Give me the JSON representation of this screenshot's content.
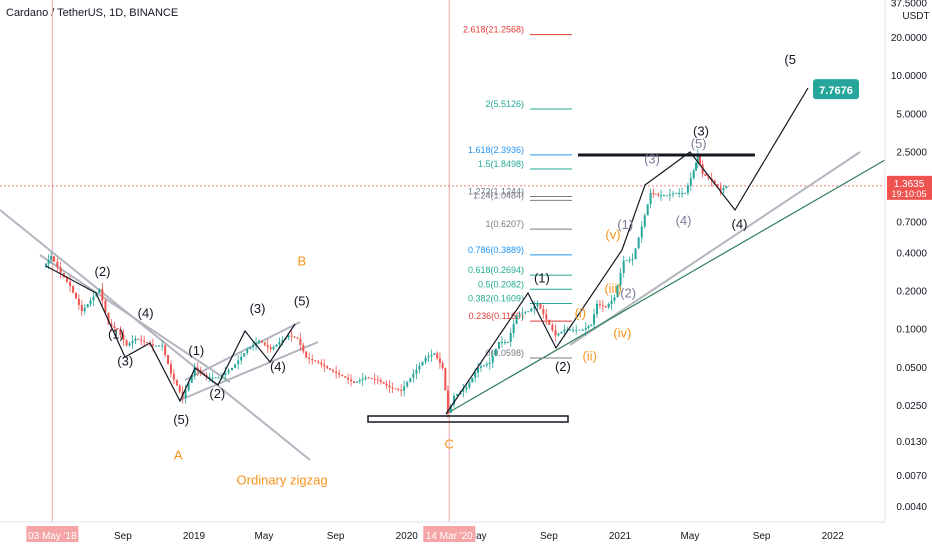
{
  "header": {
    "title": "Cardano / TetherUS, 1D, BINANCE"
  },
  "colors": {
    "candle_up": "#26a69a",
    "candle_down": "#ef5350",
    "wave_black": "#131722",
    "wave_orange": "#f7931a",
    "wave_purple": "#7b7b95",
    "trend_gray": "#b2b5be",
    "trend_green": "#2e7d5b",
    "fib_red": "#e53935",
    "fib_green": "#22ab94",
    "fib_blue": "#2196f3",
    "fib_gray": "#787b86",
    "target_box": "#26a69a",
    "price_box": "#ef5350"
  },
  "chart_data": {
    "type": "line",
    "title": "Cardano / TetherUS, 1D, BINANCE",
    "y_scale": "log",
    "y_unit": "USDT",
    "ylim": [
      0.003,
      37.5
    ],
    "y_ticks": [
      "37.5000",
      "20.0000",
      "10.0000",
      "5.0000",
      "2.5000",
      "0.7000",
      "0.4000",
      "0.2000",
      "0.1000",
      "0.0500",
      "0.0250",
      "0.0130",
      "0.0070",
      "0.0040"
    ],
    "x_ticks": [
      "Sep",
      "2019",
      "May",
      "Sep",
      "2020",
      "May",
      "Sep",
      "2021",
      "May",
      "Sep",
      "2022"
    ],
    "date_markers": [
      "03 May '18",
      "14 Mar '20"
    ],
    "series": [
      {
        "values": [
          [
            "2018-04-20",
            0.31
          ],
          [
            "2018-05-03",
            0.38
          ],
          [
            "2018-05-20",
            0.28
          ],
          [
            "2018-06-05",
            0.22
          ],
          [
            "2018-06-25",
            0.14
          ],
          [
            "2018-07-10",
            0.17
          ],
          [
            "2018-07-25",
            0.21
          ],
          [
            "2018-08-10",
            0.11
          ],
          [
            "2018-08-25",
            0.1
          ],
          [
            "2018-09-10",
            0.075
          ],
          [
            "2018-09-25",
            0.085
          ],
          [
            "2018-10-10",
            0.08
          ],
          [
            "2018-10-25",
            0.075
          ],
          [
            "2018-11-10",
            0.075
          ],
          [
            "2018-11-25",
            0.045
          ],
          [
            "2018-12-15",
            0.029
          ],
          [
            "2019-01-05",
            0.05
          ],
          [
            "2019-01-25",
            0.042
          ],
          [
            "2019-02-15",
            0.042
          ],
          [
            "2019-03-10",
            0.05
          ],
          [
            "2019-04-05",
            0.07
          ],
          [
            "2019-04-25",
            0.082
          ],
          [
            "2019-05-15",
            0.07
          ],
          [
            "2019-05-30",
            0.08
          ],
          [
            "2019-06-15",
            0.09
          ],
          [
            "2019-06-30",
            0.085
          ],
          [
            "2019-07-15",
            0.06
          ],
          [
            "2019-08-05",
            0.055
          ],
          [
            "2019-08-25",
            0.048
          ],
          [
            "2019-09-15",
            0.043
          ],
          [
            "2019-10-05",
            0.038
          ],
          [
            "2019-10-25",
            0.042
          ],
          [
            "2019-11-15",
            0.04
          ],
          [
            "2019-12-05",
            0.035
          ],
          [
            "2019-12-25",
            0.033
          ],
          [
            "2020-01-15",
            0.045
          ],
          [
            "2020-02-05",
            0.06
          ],
          [
            "2020-02-20",
            0.065
          ],
          [
            "2020-03-05",
            0.05
          ],
          [
            "2020-03-14",
            0.022
          ],
          [
            "2020-03-25",
            0.03
          ],
          [
            "2020-04-15",
            0.035
          ],
          [
            "2020-05-05",
            0.05
          ],
          [
            "2020-05-25",
            0.055
          ],
          [
            "2020-06-10",
            0.08
          ],
          [
            "2020-06-25",
            0.08
          ],
          [
            "2020-07-10",
            0.13
          ],
          [
            "2020-07-30",
            0.14
          ],
          [
            "2020-08-15",
            0.16
          ],
          [
            "2020-08-30",
            0.12
          ],
          [
            "2020-09-15",
            0.09
          ],
          [
            "2020-09-30",
            0.1
          ],
          [
            "2020-10-15",
            0.1
          ],
          [
            "2020-11-01",
            0.1
          ],
          [
            "2020-11-15",
            0.11
          ],
          [
            "2020-11-25",
            0.16
          ],
          [
            "2020-12-10",
            0.15
          ],
          [
            "2020-12-25",
            0.18
          ],
          [
            "2021-01-10",
            0.35
          ],
          [
            "2021-01-25",
            0.36
          ],
          [
            "2021-02-10",
            0.65
          ],
          [
            "2021-02-25",
            1.2
          ],
          [
            "2021-03-10",
            1.15
          ],
          [
            "2021-03-25",
            1.15
          ],
          [
            "2021-04-10",
            1.2
          ],
          [
            "2021-04-25",
            1.2
          ],
          [
            "2021-05-10",
            1.8
          ],
          [
            "2021-05-16",
            2.4
          ],
          [
            "2021-05-25",
            1.7
          ],
          [
            "2021-06-10",
            1.5
          ],
          [
            "2021-06-25",
            1.25
          ],
          [
            "2021-07-05",
            1.36
          ]
        ]
      }
    ],
    "current_price": "1.3635",
    "countdown": "19:10:05",
    "projection_target": "7.7676",
    "fib_levels": [
      {
        "label": "2.618(21.2568)",
        "value": 21.2568,
        "group": "top"
      },
      {
        "label": "2(5.5126)",
        "value": 5.5126,
        "group": "top"
      },
      {
        "label": "1.618(2.3936)",
        "value": 2.3936,
        "group": "top"
      },
      {
        "label": "1.5(1.8498)",
        "value": 1.8498,
        "group": "top"
      },
      {
        "label": "1.272(1.1244)",
        "value": 1.1244,
        "group": "top"
      },
      {
        "label": "1.24(1.0484)",
        "value": 1.0484,
        "group": "top"
      },
      {
        "label": "1(0.6207)",
        "value": 0.6207,
        "group": "main"
      },
      {
        "label": "0.786(0.3889)",
        "value": 0.3889,
        "group": "main"
      },
      {
        "label": "0.618(0.2694)",
        "value": 0.2694,
        "group": "main"
      },
      {
        "label": "0.5(0.2082)",
        "value": 0.2082,
        "group": "main"
      },
      {
        "label": "0.382(0.1609)",
        "value": 0.1609,
        "group": "main"
      },
      {
        "label": "0.236(0.1169)",
        "value": 0.1169,
        "group": "main"
      },
      {
        "label": "0(0.0598)",
        "value": 0.0598,
        "group": "main"
      }
    ],
    "annotations": [
      {
        "text": "(1)",
        "date": "2018-08-20",
        "price": 0.085,
        "color": "black"
      },
      {
        "text": "(2)",
        "date": "2018-07-28",
        "price": 0.265,
        "color": "black"
      },
      {
        "text": "(3)",
        "date": "2018-09-05",
        "price": 0.052,
        "color": "black"
      },
      {
        "text": "(4)",
        "date": "2018-10-10",
        "price": 0.125,
        "color": "black"
      },
      {
        "text": "(5)",
        "date": "2018-12-10",
        "price": 0.018,
        "color": "black"
      },
      {
        "text": "A",
        "date": "2018-12-05",
        "price": 0.0095,
        "color": "orange"
      },
      {
        "text": "(1)",
        "date": "2019-01-05",
        "price": 0.063,
        "color": "black"
      },
      {
        "text": "(2)",
        "date": "2019-02-10",
        "price": 0.029,
        "color": "black"
      },
      {
        "text": "(3)",
        "date": "2019-04-20",
        "price": 0.135,
        "color": "black"
      },
      {
        "text": "(4)",
        "date": "2019-05-25",
        "price": 0.047,
        "color": "black"
      },
      {
        "text": "(5)",
        "date": "2019-07-05",
        "price": 0.155,
        "color": "black"
      },
      {
        "text": "B",
        "date": "2019-07-05",
        "price": 0.32,
        "color": "orange"
      },
      {
        "text": "C",
        "date": "2020-03-14",
        "price": 0.0115,
        "color": "orange"
      },
      {
        "text": "Ordinary zigzag",
        "date": "2019-03-15",
        "price": 0.006,
        "color": "orange"
      },
      {
        "text": "(1)",
        "date": "2020-08-20",
        "price": 0.235,
        "color": "black"
      },
      {
        "text": "(2)",
        "date": "2020-09-25",
        "price": 0.047,
        "color": "black"
      },
      {
        "text": "(i)",
        "date": "2020-10-25",
        "price": 0.125,
        "color": "orange"
      },
      {
        "text": "(ii)",
        "date": "2020-11-10",
        "price": 0.057,
        "color": "orange"
      },
      {
        "text": "(iii)",
        "date": "2020-12-20",
        "price": 0.195,
        "color": "orange"
      },
      {
        "text": "(iv)",
        "date": "2021-01-05",
        "price": 0.087,
        "color": "orange"
      },
      {
        "text": "(v)",
        "date": "2020-12-20",
        "price": 0.52,
        "color": "orange"
      },
      {
        "text": "(1)",
        "date": "2021-01-10",
        "price": 0.62,
        "color": "purple"
      },
      {
        "text": "(2)",
        "date": "2021-01-15",
        "price": 0.18,
        "color": "purple"
      },
      {
        "text": "(3)",
        "date": "2021-02-25",
        "price": 2.05,
        "color": "purple"
      },
      {
        "text": "(4)",
        "date": "2021-04-20",
        "price": 0.67,
        "color": "purple"
      },
      {
        "text": "(5)",
        "date": "2021-05-16",
        "price": 2.7,
        "color": "purple"
      },
      {
        "text": "(3)",
        "date": "2021-05-20",
        "price": 3.4,
        "color": "black"
      },
      {
        "text": "(4)",
        "date": "2021-07-25",
        "price": 0.63,
        "color": "black"
      },
      {
        "text": "(5",
        "date": "2021-10-20",
        "price": 12.5,
        "color": "black"
      }
    ]
  }
}
